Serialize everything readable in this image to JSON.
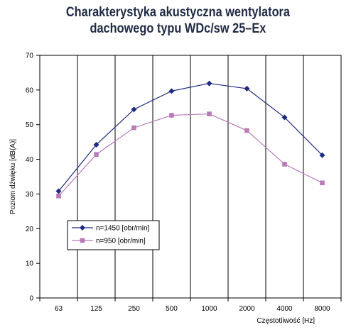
{
  "chart_data": {
    "type": "line",
    "title_line1": "Charakterystyka akustyczna wentylatora",
    "title_line2": "dachowego typu WDc/sw 25–Ex",
    "xlabel": "Częstotliwość [Hz]",
    "ylabel": "Poziom dźwięku [dB(A)]",
    "categories": [
      "63",
      "125",
      "250",
      "500",
      "1000",
      "2000",
      "4000",
      "8000"
    ],
    "ylim": [
      0,
      70
    ],
    "yticks": [
      "0",
      "10",
      "20",
      "30",
      "40",
      "50",
      "60",
      "70"
    ],
    "grid": "vertical",
    "legend_position": "lower-left inside plot",
    "series": [
      {
        "name": "n=1450 [obr/min]",
        "color": "#1f2a80",
        "marker": "diamond",
        "values": [
          30.8,
          44.2,
          54.4,
          59.7,
          61.9,
          60.4,
          52.1,
          41.2
        ]
      },
      {
        "name": "n=950 [obr/min]",
        "color": "#b87ab8",
        "marker": "square",
        "values": [
          29.4,
          41.4,
          49.1,
          52.7,
          53.1,
          48.3,
          38.6,
          33.2
        ]
      }
    ]
  }
}
